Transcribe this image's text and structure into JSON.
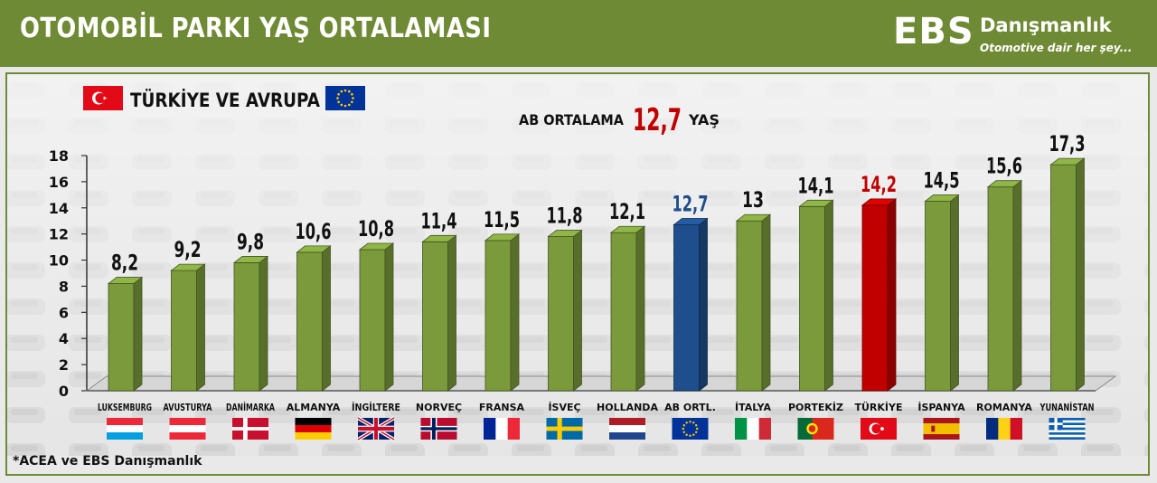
{
  "header": {
    "title": "OTOMOBİL PARKI YAŞ ORTALAMASI",
    "brand_ebs": "EBS",
    "brand_name": "Danışmanlık",
    "brand_tagline": "Otomotive dair her şey..."
  },
  "legend": {
    "label": "TÜRKİYE VE AVRUPA"
  },
  "average_note": {
    "prefix": "AB ORTALAMA",
    "value": "12,7",
    "suffix": "YAŞ"
  },
  "source_note": "*ACEA ve EBS Danışmanlık",
  "colors": {
    "header": "#6f8a35",
    "bar_default": "#7a9a3c",
    "bar_eu": "#1f4e8c",
    "bar_turkey": "#c00000",
    "label_eu": "#1f4e8c",
    "label_turkey": "#c00000"
  },
  "chart_data": {
    "type": "bar",
    "categories": [
      "LUKSEMBURG",
      "AVUSTURYA",
      "DANİMARKA",
      "ALMANYA",
      "İNGİLTERE",
      "NORVEÇ",
      "FRANSA",
      "İSVEÇ",
      "HOLLANDA",
      "AB ORTL.",
      "İTALYA",
      "PORTEKİZ",
      "TÜRKİYE",
      "İSPANYA",
      "ROMANYA",
      "YUNANİSTAN"
    ],
    "values": [
      8.2,
      9.2,
      9.8,
      10.6,
      10.8,
      11.4,
      11.5,
      11.8,
      12.1,
      12.7,
      13,
      14.1,
      14.2,
      14.5,
      15.6,
      17.3
    ],
    "data_labels": [
      "8,2",
      "9,2",
      "9,8",
      "10,6",
      "10,8",
      "11,4",
      "11,5",
      "11,8",
      "12,1",
      "12,7",
      "13",
      "14,1",
      "14,2",
      "14,5",
      "15,6",
      "17,3"
    ],
    "highlight": {
      "AB ORTL.": "eu",
      "TÜRKİYE": "turkey"
    },
    "flags": [
      "luxembourg-flag",
      "austria-flag",
      "denmark-flag",
      "germany-flag",
      "uk-flag",
      "norway-flag",
      "france-flag",
      "sweden-flag",
      "netherlands-flag",
      "eu-flag",
      "italy-flag",
      "portugal-flag",
      "turkey-flag",
      "spain-flag",
      "romania-flag",
      "greece-flag"
    ],
    "y_ticks": [
      "0",
      "2",
      "4",
      "6",
      "8",
      "10",
      "12",
      "14",
      "16",
      "18"
    ],
    "ylim": [
      0,
      18
    ],
    "grid": false,
    "legend_position": "top-left"
  }
}
